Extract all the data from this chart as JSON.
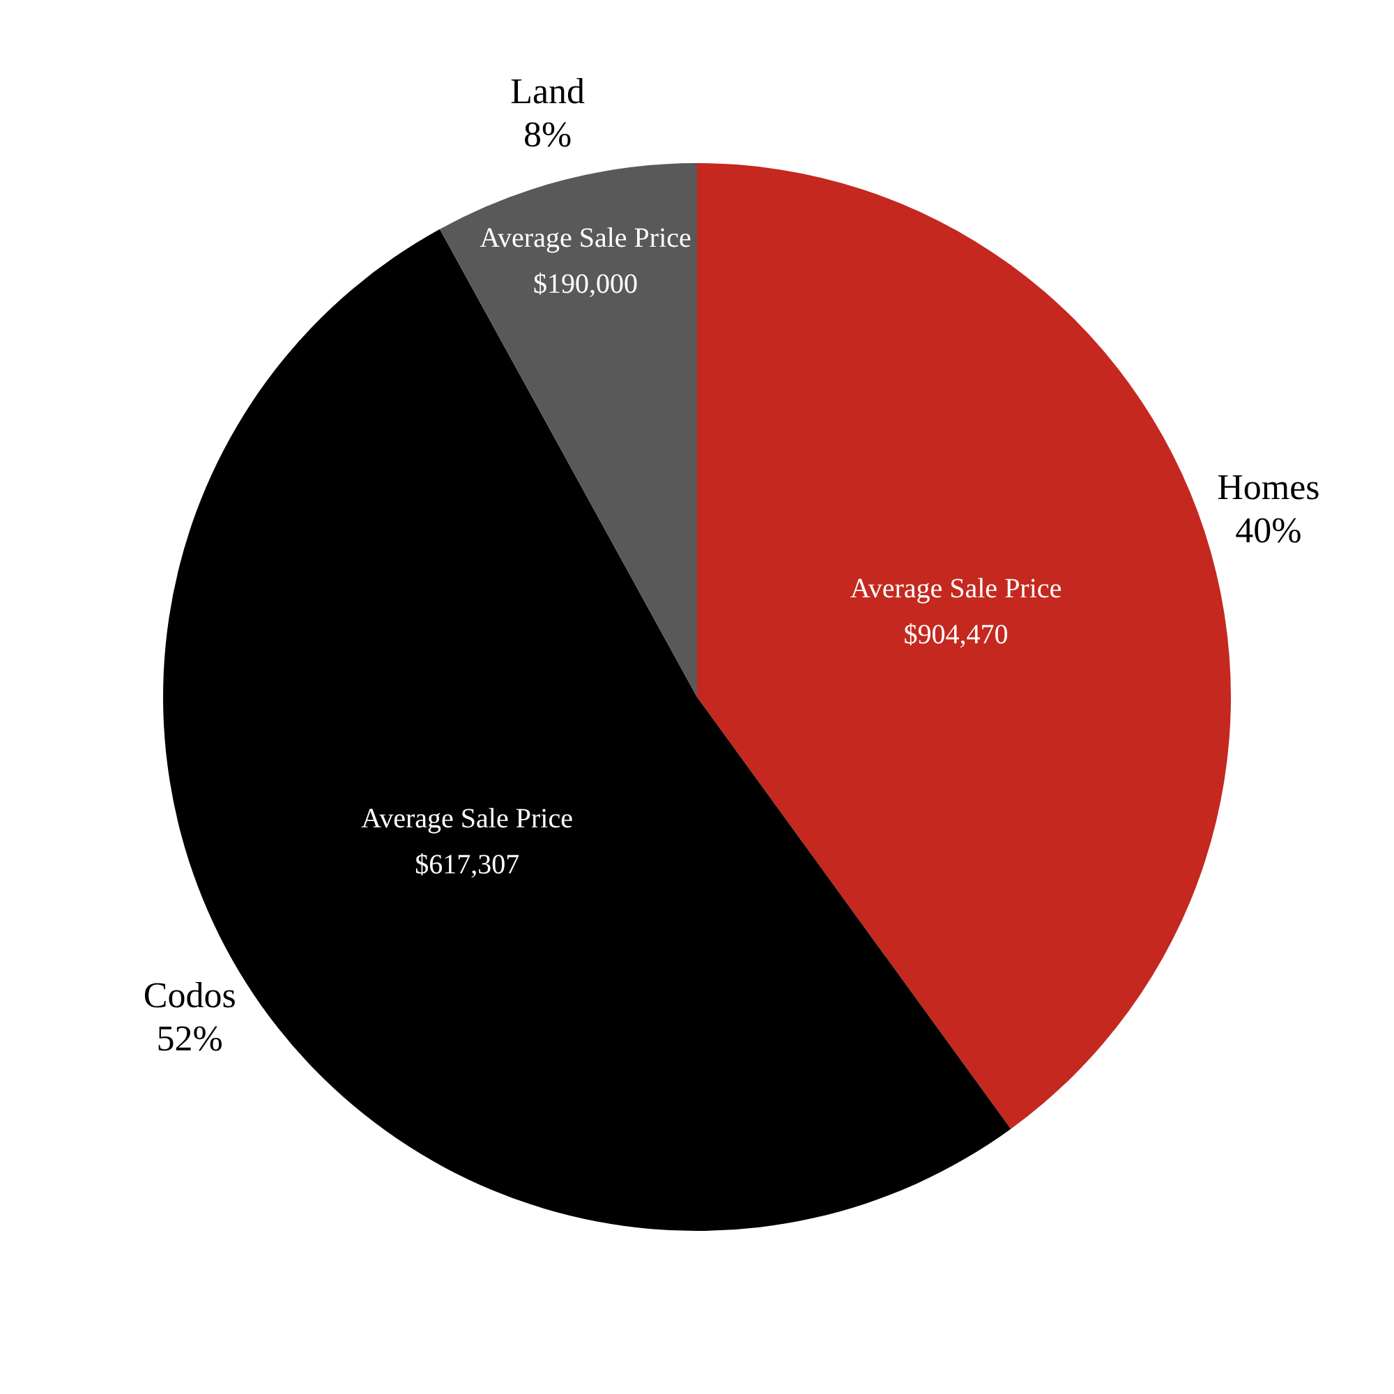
{
  "chart_data": {
    "type": "pie",
    "categories": [
      "Homes",
      "Codos",
      "Land"
    ],
    "values": [
      40,
      52,
      8
    ],
    "colors": [
      "#c4281f",
      "#000000",
      "#595959"
    ],
    "value_labels": [
      "40%",
      "52%",
      "8%"
    ],
    "annotations": [
      {
        "text": "Average Sale Price\n$904,470",
        "x": "Homes"
      },
      {
        "text": "Average Sale Price\n$617,307",
        "x": "Codos"
      },
      {
        "text": "Average Sale Price\n$190,000",
        "x": "Land"
      }
    ],
    "legend": false
  }
}
